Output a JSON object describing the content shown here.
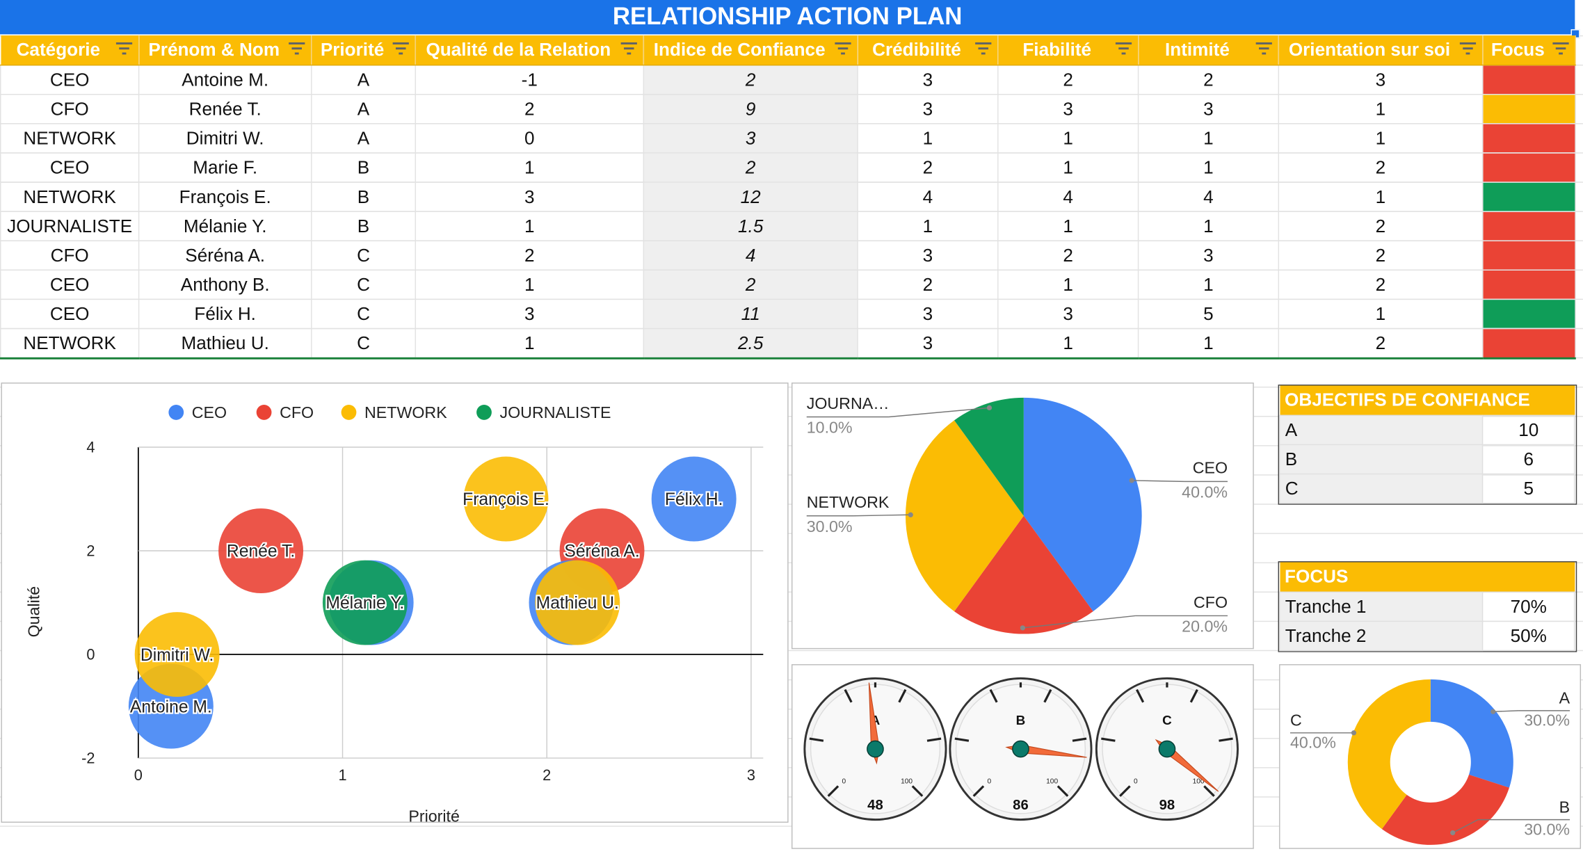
{
  "title": "RELATIONSHIP ACTION PLAN",
  "colors": {
    "header_blue": "#1a73e8",
    "header_orange": "#fbbc04",
    "ceo": "#4285f4",
    "cfo": "#ea4335",
    "network": "#fbbc04",
    "journaliste": "#0f9d58",
    "focus_red": "#ea4335",
    "focus_amber": "#fbbc04",
    "focus_green": "#0f9d58"
  },
  "table": {
    "headers": [
      "Catégorie",
      "Prénom & Nom",
      "Priorité",
      "Qualité de la Relation",
      "Indice de Confiance",
      "Crédibilité",
      "Fiabilité",
      "Intimité",
      "Orientation sur soi",
      "Focus"
    ],
    "rows": [
      {
        "categorie": "CEO",
        "nom": "Antoine M.",
        "priorite": "A",
        "qualite": "-1",
        "indice": "2",
        "credibilite": "3",
        "fiabilite": "2",
        "intimite": "2",
        "orientation": "3",
        "focus": "red"
      },
      {
        "categorie": "CFO",
        "nom": "Renée T.",
        "priorite": "A",
        "qualite": "2",
        "indice": "9",
        "credibilite": "3",
        "fiabilite": "3",
        "intimite": "3",
        "orientation": "1",
        "focus": "amber"
      },
      {
        "categorie": "NETWORK",
        "nom": "Dimitri W.",
        "priorite": "A",
        "qualite": "0",
        "indice": "3",
        "credibilite": "1",
        "fiabilite": "1",
        "intimite": "1",
        "orientation": "1",
        "focus": "red"
      },
      {
        "categorie": "CEO",
        "nom": "Marie F.",
        "priorite": "B",
        "qualite": "1",
        "indice": "2",
        "credibilite": "2",
        "fiabilite": "1",
        "intimite": "1",
        "orientation": "2",
        "focus": "red"
      },
      {
        "categorie": "NETWORK",
        "nom": "François E.",
        "priorite": "B",
        "qualite": "3",
        "indice": "12",
        "credibilite": "4",
        "fiabilite": "4",
        "intimite": "4",
        "orientation": "1",
        "focus": "green"
      },
      {
        "categorie": "JOURNALISTE",
        "nom": "Mélanie Y.",
        "priorite": "B",
        "qualite": "1",
        "indice": "1.5",
        "credibilite": "1",
        "fiabilite": "1",
        "intimite": "1",
        "orientation": "2",
        "focus": "red"
      },
      {
        "categorie": "CFO",
        "nom": "Séréna A.",
        "priorite": "C",
        "qualite": "2",
        "indice": "4",
        "credibilite": "3",
        "fiabilite": "2",
        "intimite": "3",
        "orientation": "2",
        "focus": "red"
      },
      {
        "categorie": "CEO",
        "nom": "Anthony B.",
        "priorite": "C",
        "qualite": "1",
        "indice": "2",
        "credibilite": "2",
        "fiabilite": "1",
        "intimite": "1",
        "orientation": "2",
        "focus": "red"
      },
      {
        "categorie": "CEO",
        "nom": "Félix H.",
        "priorite": "C",
        "qualite": "3",
        "indice": "11",
        "credibilite": "3",
        "fiabilite": "3",
        "intimite": "5",
        "orientation": "1",
        "focus": "green"
      },
      {
        "categorie": "NETWORK",
        "nom": "Mathieu U.",
        "priorite": "C",
        "qualite": "1",
        "indice": "2.5",
        "credibilite": "3",
        "fiabilite": "1",
        "intimite": "1",
        "orientation": "2",
        "focus": "red"
      }
    ]
  },
  "objectifs": {
    "title": "OBJECTIFS DE CONFIANCE",
    "rows": [
      {
        "label": "A",
        "value": "10"
      },
      {
        "label": "B",
        "value": "6"
      },
      {
        "label": "C",
        "value": "5"
      }
    ]
  },
  "focus_box": {
    "title": "FOCUS",
    "rows": [
      {
        "label": "Tranche 1",
        "value": "70%"
      },
      {
        "label": "Tranche 2",
        "value": "50%"
      }
    ]
  },
  "chart_data": [
    {
      "type": "scatter",
      "subtype": "bubble",
      "xlabel": "Priorité",
      "ylabel": "Qualité",
      "xlim": [
        0,
        3
      ],
      "ylim": [
        -2,
        4
      ],
      "xticks": [
        "0",
        "1",
        "2",
        "3"
      ],
      "yticks": [
        "4",
        "2",
        "0",
        "-2"
      ],
      "legend": [
        "CEO",
        "CFO",
        "NETWORK",
        "JOURNALISTE"
      ],
      "legend_position": "top",
      "points": [
        {
          "label": "Antoine M.",
          "category": "CEO",
          "x": 0.16,
          "y": -1
        },
        {
          "label": "Renée T.",
          "category": "CFO",
          "x": 0.6,
          "y": 2
        },
        {
          "label": "Dimitri W.",
          "category": "NETWORK",
          "x": 0.19,
          "y": 0
        },
        {
          "label": "Marie F.",
          "category": "CEO",
          "x": 1.14,
          "y": 1
        },
        {
          "label": "François E.",
          "category": "NETWORK",
          "x": 1.8,
          "y": 3
        },
        {
          "label": "Mélanie Y.",
          "category": "JOURNALISTE",
          "x": 1.11,
          "y": 1
        },
        {
          "label": "Séréna A.",
          "category": "CFO",
          "x": 2.27,
          "y": 2
        },
        {
          "label": "Anthony B.",
          "category": "CEO",
          "x": 2.12,
          "y": 1
        },
        {
          "label": "Félix H.",
          "category": "CEO",
          "x": 2.72,
          "y": 3
        },
        {
          "label": "Mathieu U.",
          "category": "NETWORK",
          "x": 2.15,
          "y": 1
        }
      ],
      "visible_labels": [
        "Antoine M.",
        "Renée T.",
        "Dimitri W.",
        "François E.",
        "Mélanie Y.",
        "Séréna A.",
        "Félix H.",
        "Mathieu U."
      ]
    },
    {
      "type": "pie",
      "slices": [
        {
          "name": "CEO",
          "value": 40.0,
          "label": "CEO",
          "pct": "40.0%"
        },
        {
          "name": "CFO",
          "value": 20.0,
          "label": "CFO",
          "pct": "20.0%"
        },
        {
          "name": "NETWORK",
          "value": 30.0,
          "label": "NETWORK",
          "pct": "30.0%"
        },
        {
          "name": "JOURNALISTE",
          "value": 10.0,
          "label": "JOURNA…",
          "pct": "10.0%"
        }
      ]
    },
    {
      "type": "gauge",
      "min": 0,
      "max": 100,
      "min_label": "0",
      "max_label": "100",
      "gauges": [
        {
          "name": "A",
          "value": 48,
          "value_label": "48"
        },
        {
          "name": "B",
          "value": 86,
          "value_label": "86"
        },
        {
          "name": "C",
          "value": 98,
          "value_label": "98"
        }
      ]
    },
    {
      "type": "pie",
      "subtype": "donut",
      "slices": [
        {
          "name": "A",
          "value": 30.0,
          "label": "A",
          "pct": "30.0%"
        },
        {
          "name": "B",
          "value": 30.0,
          "label": "B",
          "pct": "30.0%"
        },
        {
          "name": "C",
          "value": 40.0,
          "label": "C",
          "pct": "40.0%"
        }
      ]
    }
  ]
}
